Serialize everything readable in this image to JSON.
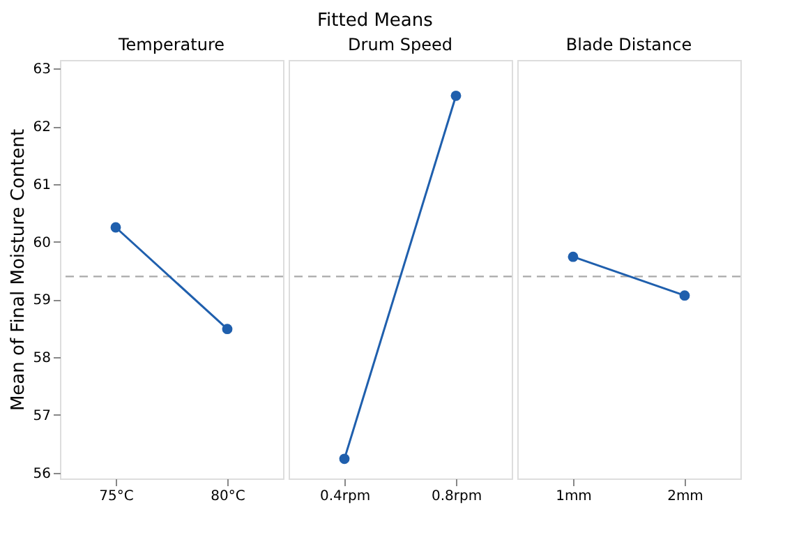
{
  "chart_data": [
    {
      "type": "line",
      "title": "Temperature",
      "annotations": [
        "Fitted Means"
      ],
      "ylabel": "Mean of Final Moisture Content",
      "categories": [
        "75°C",
        "80°C"
      ],
      "series": [
        {
          "color": "#1f5fad",
          "values": [
            60.25,
            58.49
          ]
        }
      ],
      "ylim": [
        55.9,
        63.15
      ],
      "yticks": [
        56,
        57,
        58,
        59,
        60,
        61,
        62,
        63
      ],
      "marker": "circle",
      "line_style": "solid",
      "grid": false,
      "ref_lines": [
        {
          "axis": "y",
          "value": 59.4,
          "color": "#aaaaaa",
          "line_style": "dashed"
        }
      ]
    },
    {
      "type": "line",
      "title": "Drum Speed",
      "categories": [
        "0.4rpm",
        "0.8rpm"
      ],
      "series": [
        {
          "color": "#1f5fad",
          "values": [
            56.24,
            62.53
          ]
        }
      ],
      "ylim": [
        55.9,
        63.15
      ],
      "tick_labels": "x",
      "marker": "circle",
      "line_style": "solid",
      "grid": false,
      "ref_lines": [
        {
          "axis": "y",
          "value": 59.4,
          "color": "#aaaaaa",
          "line_style": "dashed"
        }
      ]
    },
    {
      "type": "line",
      "title": "Blade Distance",
      "categories": [
        "1mm",
        "2mm"
      ],
      "series": [
        {
          "color": "#1f5fad",
          "values": [
            59.74,
            59.07
          ]
        }
      ],
      "ylim": [
        55.9,
        63.15
      ],
      "tick_labels": "x",
      "marker": "circle",
      "line_style": "solid",
      "grid": false,
      "ref_lines": [
        {
          "axis": "y",
          "value": 59.4,
          "color": "#aaaaaa",
          "line_style": "dashed"
        }
      ]
    }
  ]
}
